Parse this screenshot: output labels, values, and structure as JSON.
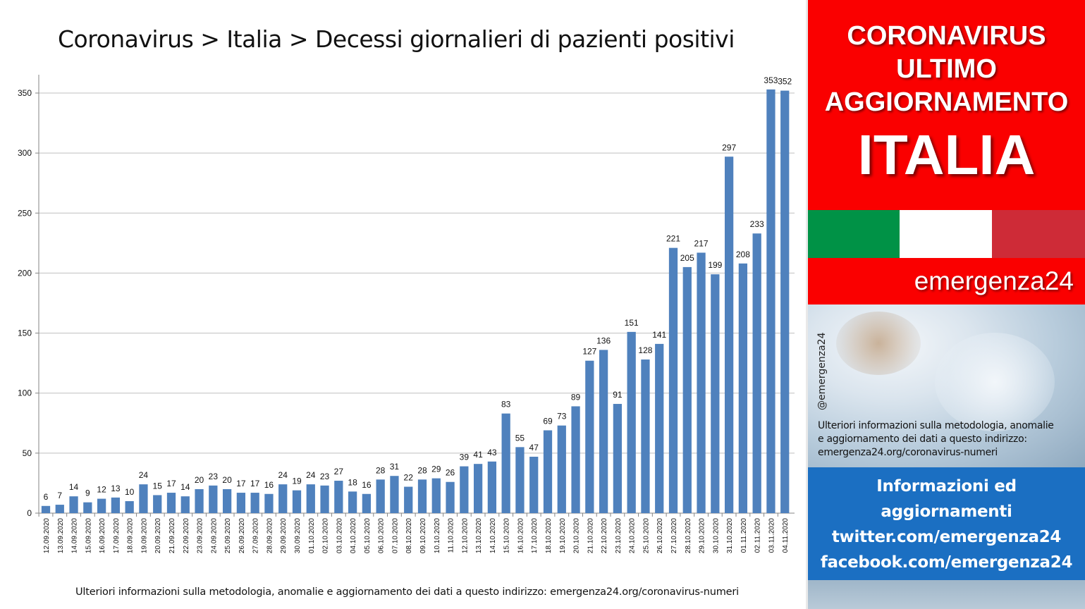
{
  "header": {
    "title": "Coronavirus > Italia > Decessi giornalieri di pazienti positivi"
  },
  "footer": {
    "note": "Ulteriori informazioni sulla metodologia, anomalie e aggiornamento dei dati a questo indirizzo: emergenza24.org/coronavirus-numeri"
  },
  "sidebar": {
    "banner": [
      "CORONAVIRUS",
      "ULTIMO",
      "AGGIORNAMENTO",
      "ITALIA"
    ],
    "brand": "emergenza24",
    "handle": "@emergenza24",
    "info": [
      "Ulteriori informazioni sulla metodologia, anomalie",
      "e aggiornamento dei dati a questo indirizzo:",
      "emergenza24.org/coronavirus-numeri"
    ],
    "links": [
      "Informazioni ed",
      "aggiornamenti",
      "twitter.com/emergenza24",
      "facebook.com/emergenza24"
    ],
    "colors": {
      "banner_red": "#fa0000",
      "flag_green": "#009246",
      "flag_white": "#ffffff",
      "flag_red": "#ce2b37",
      "links_blue": "#1b6fc2"
    }
  },
  "chart_data": {
    "type": "bar",
    "title": "Coronavirus > Italia > Decessi giornalieri di pazienti positivi",
    "xlabel": "",
    "ylabel": "",
    "ylim": [
      0,
      350
    ],
    "yticks": [
      0,
      50,
      100,
      150,
      200,
      250,
      300,
      350
    ],
    "grid": true,
    "bar_color": "#4f81bd",
    "categories": [
      "12.09.2020",
      "13.09.2020",
      "14.09.2020",
      "15.09.2020",
      "16.09.2020",
      "17.09.2020",
      "18.09.2020",
      "19.09.2020",
      "20.09.2020",
      "21.09.2020",
      "22.09.2020",
      "23.09.2020",
      "24.09.2020",
      "25.09.2020",
      "26.09.2020",
      "27.09.2020",
      "28.09.2020",
      "29.09.2020",
      "30.09.2020",
      "01.10.2020",
      "02.10.2020",
      "03.10.2020",
      "04.10.2020",
      "05.10.2020",
      "06.10.2020",
      "07.10.2020",
      "08.10.2020",
      "09.10.2020",
      "10.10.2020",
      "11.10.2020",
      "12.10.2020",
      "13.10.2020",
      "14.10.2020",
      "15.10.2020",
      "16.10.2020",
      "17.10.2020",
      "18.10.2020",
      "19.10.2020",
      "20.10.2020",
      "21.10.2020",
      "22.10.2020",
      "23.10.2020",
      "24.10.2020",
      "25.10.2020",
      "26.10.2020",
      "27.10.2020",
      "28.10.2020",
      "29.10.2020",
      "30.10.2020",
      "31.10.2020",
      "01.11.2020",
      "02.11.2020",
      "03.11.2020",
      "04.11.2020"
    ],
    "values": [
      6,
      7,
      14,
      9,
      12,
      13,
      10,
      24,
      15,
      17,
      14,
      20,
      23,
      20,
      17,
      17,
      16,
      24,
      19,
      24,
      23,
      27,
      18,
      16,
      28,
      31,
      22,
      28,
      29,
      26,
      39,
      41,
      43,
      83,
      55,
      47,
      69,
      73,
      89,
      127,
      136,
      91,
      151,
      128,
      141,
      221,
      205,
      217,
      199,
      297,
      208,
      233,
      353,
      352
    ]
  }
}
